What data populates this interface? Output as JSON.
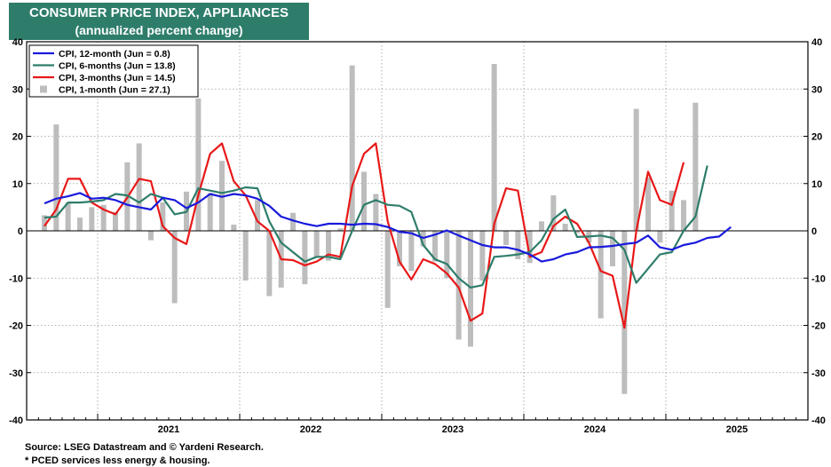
{
  "title": "CONSUMER PRICE INDEX, APPLIANCES",
  "subtitle": "(annualized percent change)",
  "footer": {
    "source": "Source: LSEG Datastream and © Yardeni Research.",
    "note": "* PCED services less energy & housing."
  },
  "chart_data": {
    "type": "line",
    "ylim": [
      -40,
      40
    ],
    "y_ticks": [
      -40,
      -30,
      -20,
      -10,
      0,
      10,
      20,
      30,
      40
    ],
    "x_start": "2020-07",
    "x_end": "2025-12",
    "year_labels": [
      "2021",
      "2022",
      "2023",
      "2024",
      "2025"
    ],
    "legend_position": "top-left",
    "series": [
      {
        "name": "CPI, 12-month (Jun = 0.8)",
        "color": "#1a1adc",
        "kind": "line",
        "start": "2020-08",
        "values": [
          5.8,
          6.8,
          7.3,
          8.0,
          6.8,
          7.0,
          6.5,
          5.5,
          5.0,
          4.5,
          7.0,
          6.5,
          4.8,
          6.0,
          7.8,
          7.2,
          7.8,
          7.5,
          6.8,
          5.3,
          3.0,
          2.2,
          1.5,
          1.0,
          1.5,
          1.5,
          1.3,
          1.5,
          1.4,
          0.8,
          -0.2,
          -0.5,
          -1.5,
          -0.8,
          0.1,
          -1.0,
          -2.0,
          -3.0,
          -3.5,
          -3.5,
          -4.0,
          -5.0,
          -6.5,
          -6.0,
          -5.0,
          -4.5,
          -3.5,
          -3.4,
          -3.2,
          -2.8,
          -2.5,
          -1.0,
          -3.5,
          -4.0,
          -3.0,
          -2.5,
          -1.5,
          -1.2,
          0.8
        ]
      },
      {
        "name": "CPI, 6-months (Jun = 13.8)",
        "color": "#2e7d6b",
        "kind": "line",
        "start": "2020-08",
        "values": [
          2.8,
          3.0,
          6.0,
          6.0,
          6.2,
          6.5,
          7.8,
          7.5,
          6.0,
          7.8,
          7.0,
          3.5,
          4.0,
          9.0,
          8.5,
          8.0,
          8.5,
          9.2,
          9.0,
          2.0,
          -2.5,
          -4.5,
          -6.5,
          -5.5,
          -5.5,
          -6.0,
          0.0,
          5.5,
          6.5,
          5.5,
          5.3,
          4.0,
          -3.0,
          -6.0,
          -7.0,
          -10.0,
          -12.0,
          -11.5,
          -5.5,
          -5.3,
          -5.0,
          -4.5,
          -2.0,
          2.5,
          4.5,
          -1.3,
          -1.2,
          -1.0,
          -1.5,
          -4.0,
          -11.0,
          -8.0,
          -5.0,
          -4.5,
          0.0,
          3.0,
          13.8
        ]
      },
      {
        "name": "CPI, 3-months (Jun = 14.5)",
        "color": "#e81818",
        "kind": "line",
        "start": "2020-08",
        "values": [
          1.0,
          4.5,
          11.0,
          11.0,
          6.0,
          4.5,
          3.5,
          7.0,
          11.0,
          10.5,
          1.0,
          -1.5,
          -2.8,
          7.5,
          16.3,
          18.5,
          10.5,
          7.5,
          2.0,
          0.0,
          -6.0,
          -6.2,
          -7.3,
          -6.5,
          -5.0,
          -5.5,
          9.5,
          16.3,
          18.5,
          2.0,
          -6.5,
          -10.3,
          -6.0,
          -7.0,
          -9.0,
          -12.0,
          -19.0,
          -17.5,
          1.5,
          9.0,
          8.5,
          -5.5,
          -4.5,
          1.0,
          3.0,
          1.5,
          -2.5,
          -8.5,
          -9.5,
          -20.5,
          0.0,
          12.5,
          6.5,
          5.5,
          14.5
        ]
      },
      {
        "name": "CPI, 1-month (Jun = 27.1)",
        "color": "#bdbdbd",
        "kind": "bar",
        "start": "2020-08",
        "values": [
          3.3,
          22.5,
          6.0,
          2.8,
          5.0,
          5.5,
          4.0,
          14.5,
          18.5,
          -2.0,
          6.0,
          -15.3,
          8.3,
          28.0,
          8.0,
          14.8,
          1.3,
          -10.5,
          6.5,
          -13.8,
          -12.0,
          3.8,
          -11.3,
          -5.5,
          -6.3,
          0.5,
          35.0,
          12.5,
          7.8,
          -16.3,
          -7.5,
          -8.5,
          -3.3,
          -6.5,
          -10.0,
          -23.0,
          -24.5,
          -10.5,
          35.3,
          -3.0,
          -6.0,
          -6.8,
          2.0,
          7.5,
          1.5,
          -0.5,
          -2.5,
          -18.5,
          -7.5,
          -34.5,
          25.8,
          11.3,
          -2.5,
          8.5,
          6.5,
          27.1
        ]
      }
    ]
  }
}
